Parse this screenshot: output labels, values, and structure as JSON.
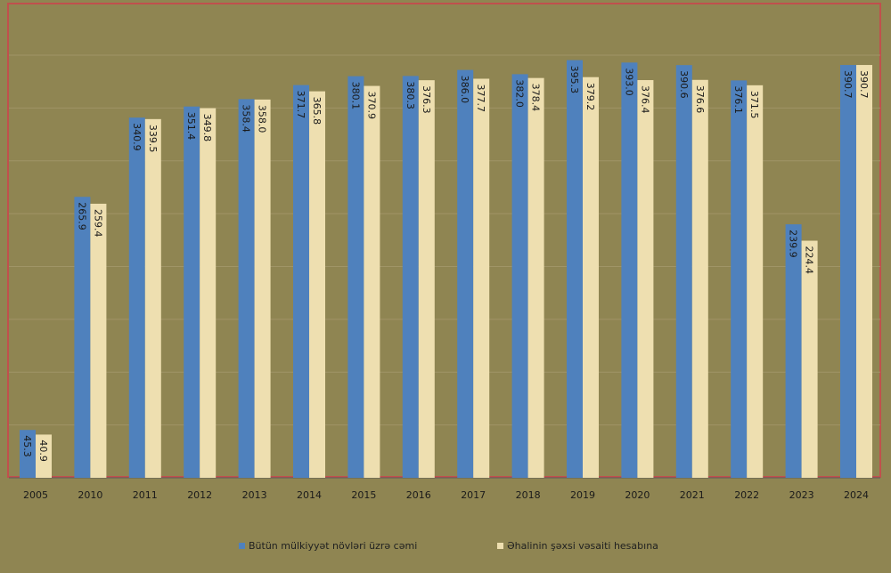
{
  "chart_data": {
    "type": "bar",
    "categories": [
      "2005",
      "2010",
      "2011",
      "2012",
      "2013",
      "2014",
      "2015",
      "2016",
      "2017",
      "2018",
      "2019",
      "2020",
      "2021",
      "2022",
      "2023",
      "2024"
    ],
    "series": [
      {
        "name": "Bütün mülkiyyət növləri üzrə cəmi",
        "values": [
          45.3,
          265.9,
          340.9,
          351.4,
          358.4,
          371.7,
          380.1,
          380.3,
          386.0,
          382.0,
          395.3,
          393.0,
          390.6,
          376.1,
          239.9,
          390.7
        ],
        "labels": [
          "45.3",
          "265.9",
          "340.9",
          "351.4",
          "358.4",
          "371.7",
          "380.1",
          "380.3",
          "386.0",
          "382.0",
          "395.3",
          "393.0",
          "390.6",
          "376.1",
          "239.9",
          "390.7"
        ],
        "color": "#4f81bd"
      },
      {
        "name": "Əhalinin şəxsi vəsaiti hesabına",
        "values": [
          40.9,
          259.4,
          339.5,
          349.8,
          358.0,
          365.8,
          370.9,
          376.3,
          377.7,
          378.4,
          379.2,
          376.4,
          376.6,
          371.5,
          224.4,
          390.7
        ],
        "labels": [
          "40.9",
          "259.4",
          "339.5",
          "349.8",
          "358.0",
          "365.8",
          "370.9",
          "376.3",
          "377.7",
          "378.4",
          "379.2",
          "376.4",
          "376.6",
          "371.5",
          "224.4",
          "390.7"
        ],
        "color": "#eedfb0"
      }
    ],
    "ylim": [
      0,
      400
    ],
    "grid": true,
    "legend": "bottom",
    "colors": {
      "background": "#8f8552",
      "frame": "#c0504d",
      "gridline": "#a09567"
    }
  }
}
